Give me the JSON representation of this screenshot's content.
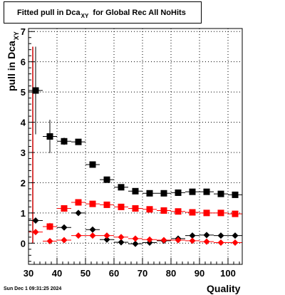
{
  "chart_data": {
    "type": "scatter",
    "title": "Fitted pull in Dca",
    "title_subscript": "XY",
    "title_suffix": "for Global Rec All NoHits",
    "xlabel": "Quality",
    "ylabel": "pull in Dca",
    "ylabel_subscript": "XY",
    "xlim": [
      30,
      105
    ],
    "ylim": [
      -0.7,
      7.1
    ],
    "x_ticks": [
      "30",
      "40",
      "50",
      "60",
      "70",
      "80",
      "90",
      "100"
    ],
    "y_ticks": [
      "0",
      "1",
      "2",
      "3",
      "4",
      "5",
      "6",
      "7"
    ],
    "grid": true,
    "footer": "Sun Dec  1 09:31:25 2024",
    "x": [
      32.5,
      37.5,
      42.5,
      47.5,
      52.5,
      57.5,
      62.5,
      67.5,
      72.5,
      77.5,
      82.5,
      87.5,
      92.5,
      97.5,
      102.5
    ],
    "series": [
      {
        "marker": "square",
        "color": "#000000",
        "values": [
          5.05,
          3.53,
          3.37,
          3.35,
          2.6,
          2.1,
          1.85,
          1.72,
          1.65,
          1.65,
          1.67,
          1.7,
          1.7,
          1.63,
          1.6
        ],
        "errors": [
          1.45,
          0.55,
          0.12,
          0.05,
          0.05,
          0.04,
          0.05,
          0.05,
          0.04,
          0.04,
          0.04,
          0.04,
          0.04,
          0.04,
          0.04
        ]
      },
      {
        "marker": "square",
        "color": "#ff0000",
        "values": [
          null,
          0.55,
          1.15,
          1.35,
          1.3,
          1.27,
          1.2,
          1.15,
          1.12,
          1.08,
          1.05,
          1.02,
          1.0,
          1.0,
          0.97
        ],
        "errors": [
          null,
          0.12,
          0.05,
          0.04,
          0.03,
          0.03,
          0.03,
          0.03,
          0.03,
          0.03,
          0.03,
          0.03,
          0.03,
          0.03,
          0.03
        ]
      },
      {
        "marker": "diamond",
        "color": "#000000",
        "values": [
          0.75,
          null,
          0.52,
          1.0,
          0.45,
          0.12,
          0.03,
          -0.02,
          0.02,
          0.08,
          0.15,
          0.25,
          0.27,
          0.25,
          0.25
        ],
        "errors": [
          0.05,
          null,
          0.05,
          0.04,
          0.04,
          0.04,
          0.04,
          0.04,
          0.03,
          0.03,
          0.03,
          0.03,
          0.03,
          0.03,
          0.03
        ]
      },
      {
        "marker": "diamond",
        "color": "#ff0000",
        "values": [
          0.37,
          0.07,
          0.1,
          0.25,
          0.25,
          0.25,
          0.2,
          0.15,
          0.12,
          0.1,
          0.1,
          0.08,
          0.05,
          0.02,
          0.02
        ],
        "errors": [
          0.04,
          0.03,
          0.03,
          0.03,
          0.03,
          0.03,
          0.03,
          0.03,
          0.03,
          0.03,
          0.03,
          0.03,
          0.03,
          0.03,
          0.03
        ]
      }
    ],
    "reference_line": {
      "x": 31.5,
      "y_from": 0,
      "y_to": 6.5,
      "color": "#cc0000"
    }
  }
}
